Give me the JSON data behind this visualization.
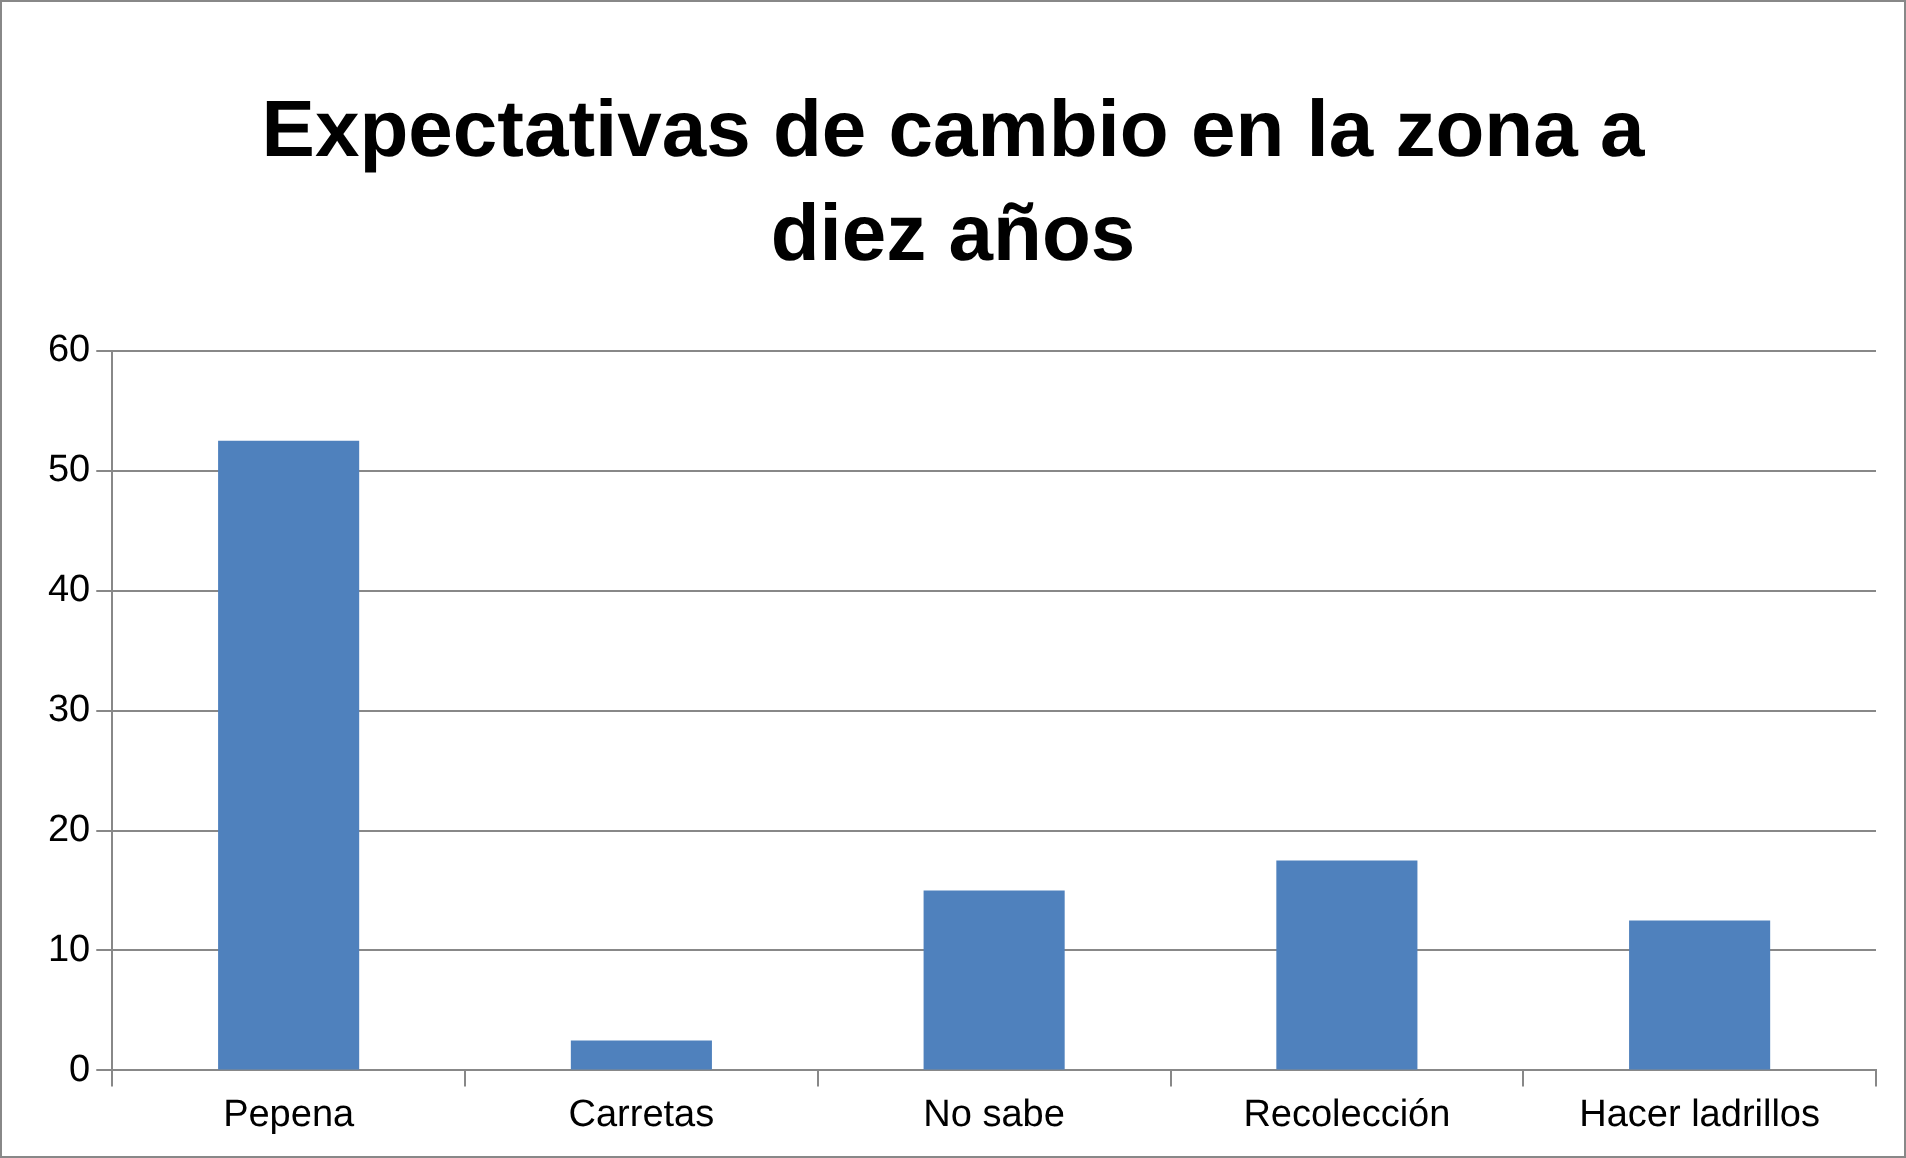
{
  "chart_data": {
    "type": "bar",
    "title": "Expectativas de cambio en la zona a diez años",
    "categories": [
      "Pepena",
      "Carretas",
      "No sabe",
      "Recolección",
      "Hacer ladrillos"
    ],
    "values": [
      52.5,
      2.5,
      15,
      17.5,
      12.5
    ],
    "color": "#4f81bd",
    "ylim": [
      0,
      60
    ],
    "yticks": [
      0,
      10,
      20,
      30,
      40,
      50,
      60
    ],
    "grid": "y",
    "legend": false
  }
}
